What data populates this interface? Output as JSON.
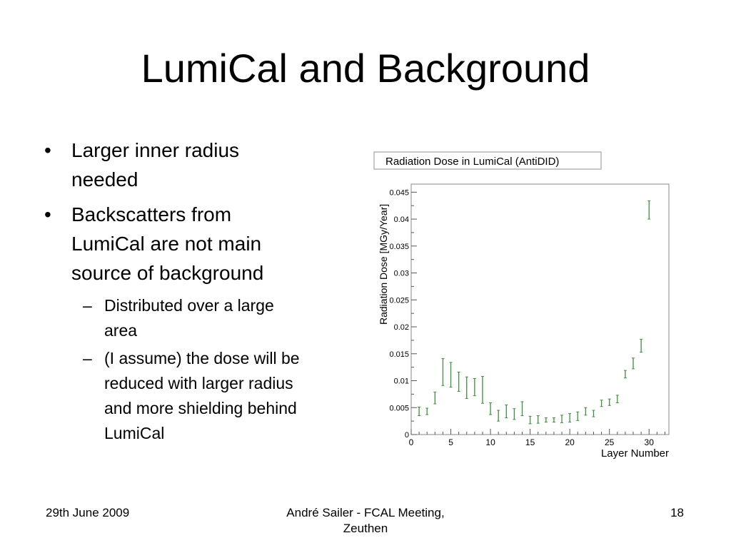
{
  "slide": {
    "title": "LumiCal and Background",
    "bullets": [
      {
        "text": "Larger inner radius needed",
        "lines": [
          "Larger inner radius",
          "needed"
        ]
      },
      {
        "text": "Backscatters from LumiCal are not main source of background",
        "lines": [
          "Backscatters from",
          "LumiCal are not main",
          "source of background"
        ]
      }
    ],
    "sub_bullets": [
      {
        "text": "Distributed over a large area",
        "lines": [
          "Distributed over a large",
          "area"
        ]
      },
      {
        "text": "(I assume) the dose will be reduced with larger radius and more shielding behind LumiCal",
        "lines": [
          "(I assume) the dose will be",
          "reduced with larger radius",
          "and more shielding behind",
          "LumiCal"
        ]
      }
    ],
    "bullet_glyph": "•",
    "sub_bullet_glyph": "–"
  },
  "footer": {
    "date": "29th June 2009",
    "presenter_line1": "André Sailer - FCAL Meeting,",
    "presenter_line2": "Zeuthen",
    "page_number": "18"
  },
  "chart_data": {
    "type": "scatter",
    "title": "Radiation Dose in LumiCal (AntiDID)",
    "xlabel": "Layer Number",
    "ylabel": "Radiation Dose [MGy/Year]",
    "xlim": [
      0,
      32.5
    ],
    "ylim": [
      0,
      0.0465
    ],
    "xticks": [
      0,
      5,
      10,
      15,
      20,
      25,
      30
    ],
    "yticks": [
      0,
      0.005,
      0.01,
      0.015,
      0.02,
      0.025,
      0.03,
      0.035,
      0.04,
      0.045
    ],
    "ytick_labels": [
      "0",
      "0.005",
      "0.01",
      "0.015",
      "0.02",
      "0.025",
      "0.03",
      "0.035",
      "0.04",
      "0.045"
    ],
    "grid": false,
    "marker_color": "#3f8f3f",
    "series": [
      {
        "x": [
          1,
          2,
          3,
          4,
          5,
          6,
          7,
          8,
          9,
          10,
          11,
          12,
          13,
          14,
          15,
          16,
          17,
          18,
          19,
          20,
          21,
          22,
          23,
          24,
          25,
          26,
          27,
          28,
          29,
          30
        ],
        "values": [
          0.0043,
          0.0043,
          0.0068,
          0.0116,
          0.0111,
          0.0098,
          0.0087,
          0.0088,
          0.0083,
          0.0048,
          0.0035,
          0.0043,
          0.0038,
          0.0048,
          0.0027,
          0.0028,
          0.0027,
          0.0027,
          0.0029,
          0.0031,
          0.0034,
          0.0043,
          0.0039,
          0.0058,
          0.006,
          0.0066,
          0.0112,
          0.0132,
          0.0165,
          0.0417
        ],
        "errors": [
          0.0008,
          0.0006,
          0.0011,
          0.0025,
          0.0023,
          0.0018,
          0.002,
          0.0016,
          0.0025,
          0.0011,
          0.001,
          0.0012,
          0.001,
          0.0013,
          0.0007,
          0.0007,
          0.0004,
          0.0004,
          0.0007,
          0.0008,
          0.0008,
          0.0007,
          0.0006,
          0.0006,
          0.0006,
          0.0007,
          0.0007,
          0.001,
          0.0012,
          0.0017
        ]
      }
    ]
  }
}
